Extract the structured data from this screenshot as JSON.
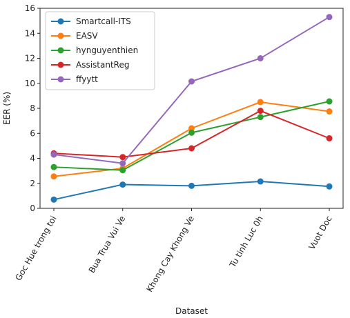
{
  "chart_data": {
    "type": "line",
    "xlabel": "Dataset",
    "ylabel": "EER (%)",
    "ylim": [
      0,
      16
    ],
    "yticks": [
      0,
      2,
      4,
      6,
      8,
      10,
      12,
      14,
      16
    ],
    "categories": [
      "Goc Hue trong toi",
      "Bua Trua Vui Ve",
      "Khong Cay Khong Ve",
      "Tu tinh Luc 0h",
      "Vuot Doc"
    ],
    "legend": "upper-left",
    "grid": false,
    "series": [
      {
        "name": "Smartcall-ITS",
        "color": "#1f77b4",
        "values": [
          0.7,
          1.9,
          1.8,
          2.15,
          1.75
        ]
      },
      {
        "name": "EASV",
        "color": "#ff7f0e",
        "values": [
          2.55,
          3.2,
          6.4,
          8.5,
          7.75
        ]
      },
      {
        "name": "hynguyenthien",
        "color": "#2ca02c",
        "values": [
          3.3,
          3.05,
          6.05,
          7.3,
          8.55
        ]
      },
      {
        "name": "AssistantReg",
        "color": "#d62728",
        "values": [
          4.4,
          4.1,
          4.8,
          7.8,
          5.6
        ]
      },
      {
        "name": "ffyytt",
        "color": "#9467bd",
        "values": [
          4.3,
          3.6,
          10.15,
          12.0,
          15.3
        ]
      }
    ]
  }
}
